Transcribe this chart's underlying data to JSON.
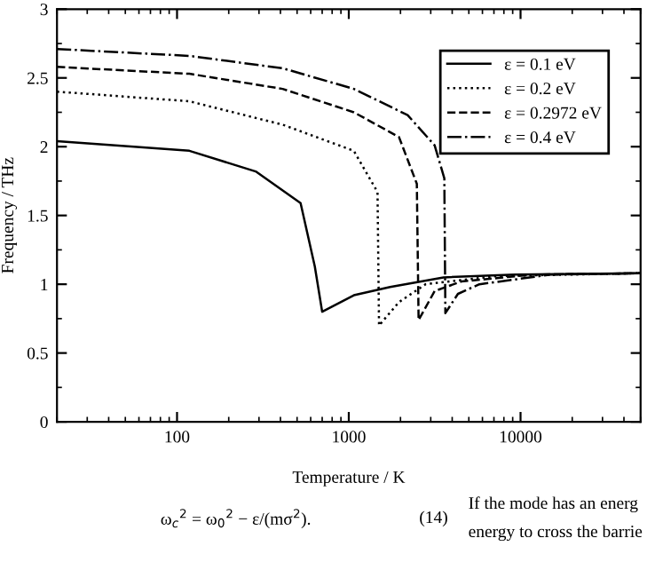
{
  "chart_data": {
    "type": "line",
    "xlabel": "Temperature / K",
    "ylabel": "Frequency / THz",
    "log": "x",
    "xlim": [
      20,
      50000
    ],
    "xticks": [
      100,
      1000,
      10000
    ],
    "ylim": [
      0,
      3
    ],
    "yticks": [
      0,
      0.5,
      1,
      1.5,
      2,
      2.5,
      3
    ],
    "legend": "top right",
    "grid": false,
    "marker": "none",
    "series": [
      {
        "name": "ε = 0.1 eV",
        "color": "#000000",
        "line_style": "solid",
        "x": [
          20,
          118,
          287,
          524,
          634,
          700,
          1070,
          1740,
          3560,
          9300,
          50000
        ],
        "values": [
          2.04,
          1.97,
          1.82,
          1.59,
          1.13,
          0.8,
          0.92,
          0.98,
          1.05,
          1.07,
          1.08
        ]
      },
      {
        "name": "ε = 0.2 eV",
        "color": "#000000",
        "line_style": "dotted",
        "x": [
          20,
          118,
          412,
          1070,
          1470,
          1500,
          1960,
          2800,
          7300,
          50000
        ],
        "values": [
          2.4,
          2.33,
          2.16,
          1.97,
          1.67,
          0.7,
          0.87,
          1.0,
          1.06,
          1.08
        ]
      },
      {
        "name": "ε = 0.2972 eV",
        "color": "#000000",
        "line_style": "dashed",
        "x": [
          20,
          118,
          412,
          1070,
          1960,
          2490,
          2550,
          3160,
          4520,
          11800,
          50000
        ],
        "values": [
          2.58,
          2.53,
          2.42,
          2.25,
          2.07,
          1.73,
          0.74,
          0.95,
          1.02,
          1.07,
          1.08
        ]
      },
      {
        "name": "ε = 0.4 eV",
        "color": "#000000",
        "line_style": "dashdot",
        "x": [
          20,
          118,
          412,
          1070,
          2200,
          3160,
          3600,
          3650,
          4320,
          5760,
          15000,
          50000
        ],
        "values": [
          2.71,
          2.66,
          2.57,
          2.42,
          2.23,
          2.01,
          1.77,
          0.79,
          0.93,
          1.0,
          1.07,
          1.08
        ]
      }
    ],
    "annotations": [
      "ω$_{c}$$^{2}$ = ω$_{0}$$^{2}$ − ε/(mσ$^{2}$).",
      "(14)",
      "If the mode has an energ",
      "energy to cross the barrie"
    ]
  }
}
